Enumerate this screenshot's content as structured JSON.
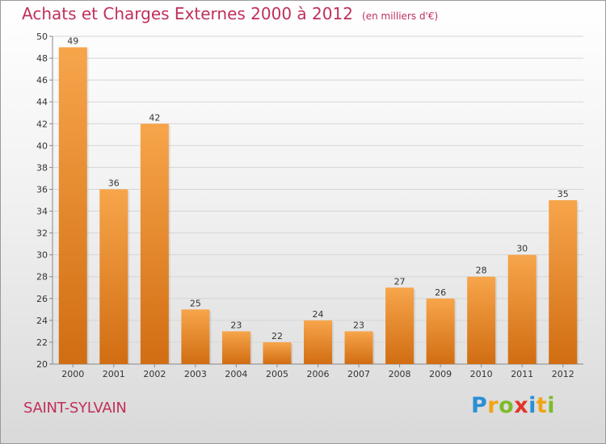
{
  "header": {
    "title": "Achats et Charges Externes 2000 à 2012",
    "unit": "(en milliers d'€)"
  },
  "footer": {
    "commune": "SAINT-SYLVAIN",
    "brand_letters": [
      "P",
      "r",
      "o",
      "x",
      "i",
      "t",
      "i"
    ],
    "brand_colors": [
      "#2a8fd4",
      "#f2a413",
      "#7dbb2a",
      "#e2342b",
      "#2a8fd4",
      "#f2a413",
      "#7dbb2a"
    ]
  },
  "chart_data": {
    "type": "bar",
    "title": "Achats et Charges Externes 2000 à 2012",
    "subtitle": "(en milliers d'€)",
    "categories": [
      "2000",
      "2001",
      "2002",
      "2003",
      "2004",
      "2005",
      "2006",
      "2007",
      "2008",
      "2009",
      "2010",
      "2011",
      "2012"
    ],
    "values": [
      49,
      36,
      42,
      25,
      23,
      22,
      24,
      23,
      27,
      26,
      28,
      30,
      35
    ],
    "ylim": [
      20,
      50
    ],
    "yticks": [
      20,
      22,
      24,
      26,
      28,
      30,
      32,
      34,
      36,
      38,
      40,
      42,
      44,
      46,
      48,
      50
    ],
    "grid": true,
    "bar_color_top": "#f7a54b",
    "bar_color_bottom": "#d16d12",
    "label_color": "#333333"
  }
}
